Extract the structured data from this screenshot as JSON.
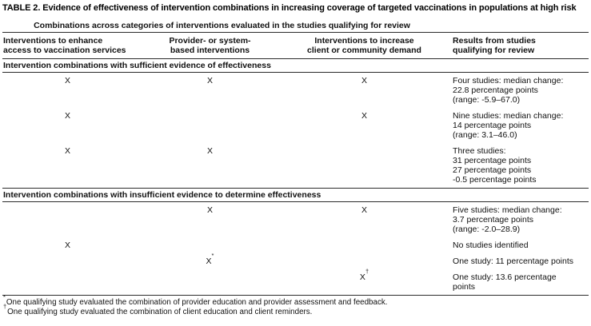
{
  "title": "TABLE 2. Evidence of effectiveness of intervention combinations in increasing coverage of targeted vaccinations in populations at high risk",
  "table": {
    "spanner": "Combinations across categories of interventions evaluated in the studies qualifying for review",
    "columns": {
      "c1": "Interventions to enhance\naccess to vaccination services",
      "c2": "Provider- or system-\nbased interventions",
      "c3": "Interventions to increase\nclient or community demand",
      "c4": "Results from studies\nqualifying for review"
    },
    "section1": {
      "header": "Intervention combinations with sufficient evidence of effectiveness",
      "rows": [
        {
          "c1": "X",
          "c2": "X",
          "c3": "X",
          "results": "Four studies: median change:\n22.8 percentage points\n(range: -5.9–67.0)"
        },
        {
          "c1": "X",
          "c2": "",
          "c3": "X",
          "results": "Nine studies: median change:\n14 percentage points\n(range: 3.1–46.0)"
        },
        {
          "c1": "X",
          "c2": "X",
          "c3": "",
          "results": "Three studies:\n31 percentage points\n27 percentage points\n-0.5 percentage points"
        }
      ]
    },
    "section2": {
      "header": "Intervention combinations with insufficient evidence to determine effectiveness",
      "rows": [
        {
          "c1": "",
          "c2": "X",
          "c3": "X",
          "results": "Five studies: median change:\n3.7 percentage points\n(range: -2.0–28.9)"
        },
        {
          "c1": "X",
          "c2": "",
          "c3": "",
          "results": "No studies identified"
        },
        {
          "c1": "",
          "c2": "X",
          "c2_sup": "*",
          "c3": "",
          "results": "One study: 11 percentage points"
        },
        {
          "c1": "",
          "c2": "",
          "c3": "X",
          "c3_sup": "†",
          "results": "One study: 13.6 percentage\npoints"
        }
      ]
    }
  },
  "footnotes": [
    {
      "marker": "*",
      "text": "One qualifying study evaluated the combination of provider education and provider assessment and feedback."
    },
    {
      "marker": "†",
      "text": "One qualifying study evaluated the combination of client education and client reminders."
    }
  ]
}
